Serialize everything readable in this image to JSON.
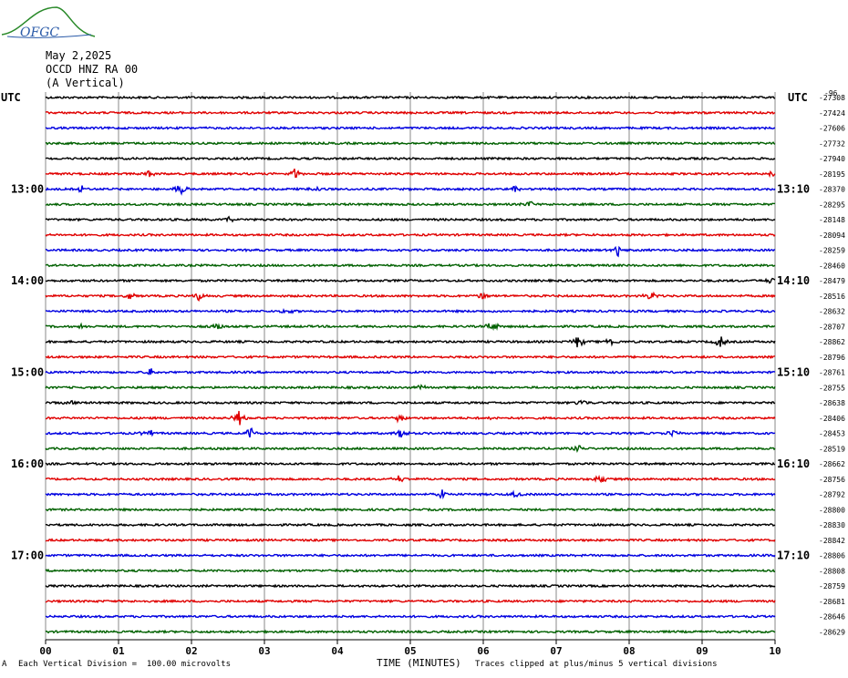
{
  "header": {
    "logo_text": "OFGC",
    "date": "May 2,2025",
    "station": "OCCD HNZ RA 00",
    "component": "(A Vertical)"
  },
  "left_label": "UTC",
  "right_label": "UTC",
  "right_top_label": "-96",
  "footer": {
    "note_left": "Each Vertical Division =  100.00 microvolts",
    "note_right": "Traces clipped at plus/minus 5 vertical divisions",
    "marker": "A"
  },
  "chart_data": {
    "type": "line",
    "title": "",
    "xlabel": "TIME (MINUTES)",
    "x_ticks": [
      "00",
      "01",
      "02",
      "03",
      "04",
      "05",
      "06",
      "07",
      "08",
      "09",
      "10"
    ],
    "xlim": [
      0,
      10
    ],
    "grid": true,
    "trace_colors": [
      "#000000",
      "#e00000",
      "#0000e0",
      "#006000"
    ],
    "left_time_labels": [
      {
        "trace": 6,
        "label": "13:00"
      },
      {
        "trace": 12,
        "label": "14:00"
      },
      {
        "trace": 18,
        "label": "15:00"
      },
      {
        "trace": 24,
        "label": "16:00"
      },
      {
        "trace": 30,
        "label": "17:00"
      }
    ],
    "right_time_labels": [
      {
        "trace": 6,
        "label": "13:10"
      },
      {
        "trace": 12,
        "label": "14:10"
      },
      {
        "trace": 18,
        "label": "15:10"
      },
      {
        "trace": 24,
        "label": "16:10"
      },
      {
        "trace": 30,
        "label": "17:10"
      }
    ],
    "trace_offsets": [
      -27308,
      -27424,
      -27606,
      -27732,
      -27940,
      -28195,
      -28370,
      -28295,
      -28148,
      -28094,
      -28259,
      -28460,
      -28479,
      -28516,
      -28632,
      -28707,
      -28862,
      -28796,
      -28761,
      -28755,
      -28638,
      -28406,
      -28453,
      -28519,
      -28662,
      -28756,
      -28792,
      -28800,
      -28830,
      -28842,
      -28806,
      -28808,
      -28759,
      -28681,
      -28646,
      -28629
    ],
    "events": [
      {
        "trace": 5,
        "minute": 1.42,
        "amp": 5
      },
      {
        "trace": 5,
        "minute": 3.42,
        "amp": 6
      },
      {
        "trace": 5,
        "minute": 9.95,
        "amp": 4
      },
      {
        "trace": 6,
        "minute": 0.5,
        "amp": 5
      },
      {
        "trace": 6,
        "minute": 1.85,
        "amp": 8
      },
      {
        "trace": 6,
        "minute": 3.72,
        "amp": 5
      },
      {
        "trace": 6,
        "minute": 6.42,
        "amp": 5
      },
      {
        "trace": 7,
        "minute": 6.62,
        "amp": 6
      },
      {
        "trace": 8,
        "minute": 2.52,
        "amp": 4
      },
      {
        "trace": 10,
        "minute": 7.85,
        "amp": 8
      },
      {
        "trace": 12,
        "minute": 9.95,
        "amp": 4
      },
      {
        "trace": 13,
        "minute": 1.15,
        "amp": 5
      },
      {
        "trace": 13,
        "minute": 2.1,
        "amp": 6
      },
      {
        "trace": 13,
        "minute": 6.0,
        "amp": 5
      },
      {
        "trace": 13,
        "minute": 8.3,
        "amp": 6
      },
      {
        "trace": 14,
        "minute": 3.3,
        "amp": 4
      },
      {
        "trace": 15,
        "minute": 0.5,
        "amp": 4
      },
      {
        "trace": 15,
        "minute": 2.35,
        "amp": 5
      },
      {
        "trace": 15,
        "minute": 6.12,
        "amp": 8
      },
      {
        "trace": 16,
        "minute": 7.3,
        "amp": 8
      },
      {
        "trace": 16,
        "minute": 7.75,
        "amp": 6
      },
      {
        "trace": 16,
        "minute": 9.25,
        "amp": 7
      },
      {
        "trace": 18,
        "minute": 1.45,
        "amp": 6
      },
      {
        "trace": 19,
        "minute": 5.15,
        "amp": 4
      },
      {
        "trace": 20,
        "minute": 0.35,
        "amp": 4
      },
      {
        "trace": 20,
        "minute": 7.35,
        "amp": 4
      },
      {
        "trace": 21,
        "minute": 2.65,
        "amp": 9
      },
      {
        "trace": 21,
        "minute": 4.85,
        "amp": 5
      },
      {
        "trace": 21,
        "minute": 6.15,
        "amp": 4
      },
      {
        "trace": 22,
        "minute": 1.4,
        "amp": 7
      },
      {
        "trace": 22,
        "minute": 2.8,
        "amp": 8
      },
      {
        "trace": 22,
        "minute": 4.88,
        "amp": 7
      },
      {
        "trace": 22,
        "minute": 8.6,
        "amp": 5
      },
      {
        "trace": 23,
        "minute": 7.3,
        "amp": 4
      },
      {
        "trace": 25,
        "minute": 4.85,
        "amp": 5
      },
      {
        "trace": 25,
        "minute": 7.6,
        "amp": 6
      },
      {
        "trace": 26,
        "minute": 5.45,
        "amp": 6
      },
      {
        "trace": 26,
        "minute": 6.45,
        "amp": 4
      }
    ]
  }
}
